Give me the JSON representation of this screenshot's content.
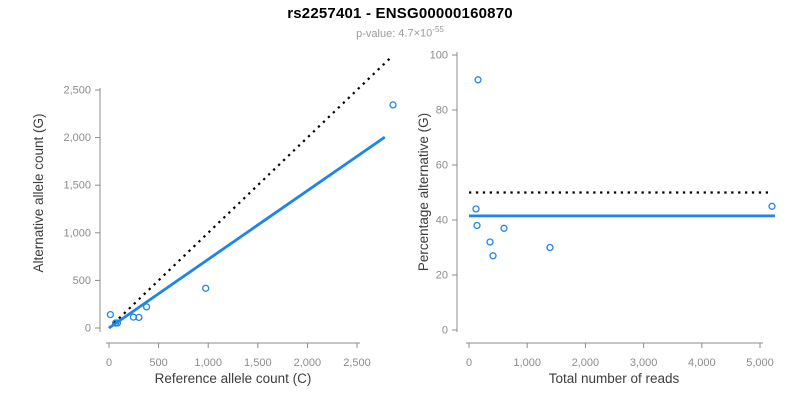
{
  "header": {
    "title": "rs2257401 - ENSG00000160870",
    "p_value": {
      "label": "p-value:",
      "mantissa": "4.7",
      "times": "×",
      "base": "10",
      "exponent": "-55"
    }
  },
  "colors": {
    "accent_blue": "#1f85e5",
    "identity_black": "#000000",
    "axis_line": "#8c8c8c",
    "tick_label": "#8c8c8c",
    "axis_title": "#3d3d3d",
    "title": "#000000",
    "subtitle": "#9b9b9b"
  },
  "chart_data": [
    {
      "type": "scatter",
      "panel": "left",
      "xlabel": "Reference allele count (C)",
      "ylabel": "Alternative allele count (G)",
      "xlim": [
        0,
        2500
      ],
      "ylim": [
        0,
        2500
      ],
      "grid": false,
      "xticks": {
        "values": [
          0,
          500,
          1000,
          1500,
          2000,
          2500
        ],
        "labels": [
          "0",
          "500",
          "1,000",
          "1,500",
          "2,000",
          "2,500"
        ]
      },
      "yticks": {
        "values": [
          0,
          500,
          1000,
          1500,
          2000,
          2500
        ],
        "labels": [
          "0",
          "500",
          "1,000",
          "1,500",
          "2,000",
          "2,500"
        ]
      },
      "points": [
        [
          14,
          141
        ],
        [
          67,
          53
        ],
        [
          85,
          52
        ],
        [
          246,
          115
        ],
        [
          301,
          111
        ],
        [
          379,
          222
        ],
        [
          975,
          417
        ],
        [
          2863,
          2343
        ]
      ],
      "lines": [
        {
          "name": "identity-line",
          "style": "dotted",
          "color": "#000000",
          "x1": 0,
          "y1": 0,
          "x2": 2840,
          "y2": 2840
        },
        {
          "name": "fit-line",
          "style": "solid",
          "color": "#1f85e5",
          "x1": 0,
          "y1": 0,
          "x2": 2780,
          "y2": 2005
        }
      ]
    },
    {
      "type": "scatter",
      "panel": "right",
      "xlabel": "Total number of reads",
      "ylabel": "Percentage alternative (G)",
      "xlim": [
        0,
        5000
      ],
      "ylim": [
        0,
        100
      ],
      "grid": false,
      "xticks": {
        "values": [
          0,
          1000,
          2000,
          3000,
          4000,
          5000
        ],
        "labels": [
          "0",
          "1,000",
          "2,000",
          "3,000",
          "4,000",
          "5,000"
        ]
      },
      "yticks": {
        "values": [
          0,
          20,
          40,
          60,
          80,
          100
        ],
        "labels": [
          "0",
          "20",
          "40",
          "60",
          "80",
          "100"
        ]
      },
      "points": [
        [
          155,
          91
        ],
        [
          120,
          44
        ],
        [
          137,
          38
        ],
        [
          361,
          32
        ],
        [
          412,
          27
        ],
        [
          601,
          37
        ],
        [
          1392,
          30
        ],
        [
          5206,
          45
        ]
      ],
      "lines": [
        {
          "name": "expected-50pct-line",
          "style": "dotted",
          "color": "#000000",
          "x1": 0,
          "y1": 50,
          "x2": 5150,
          "y2": 50
        },
        {
          "name": "mean-line",
          "style": "solid",
          "color": "#1f85e5",
          "x1": 0,
          "y1": 41.5,
          "x2": 5260,
          "y2": 41.5
        }
      ]
    }
  ]
}
